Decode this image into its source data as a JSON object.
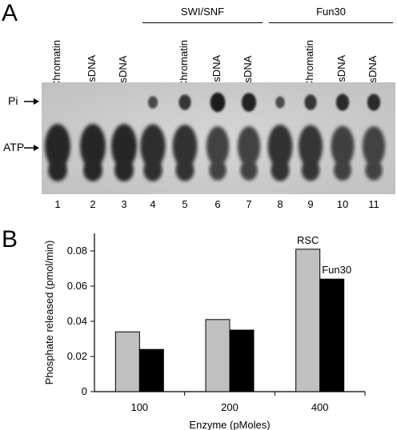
{
  "panel_a": {
    "letter": "A",
    "lane_labels": [
      "Chromatin",
      "dsDNA",
      "ssDNA",
      "Chromatin",
      "dsDNA",
      "ssDNA",
      "Chromatin",
      "dsDNA",
      "ssDNA"
    ],
    "groups": [
      {
        "label": "SWI/SNF"
      },
      {
        "label": "Fun30"
      }
    ],
    "side_labels": {
      "pi": "Pi",
      "atp": "ATP"
    },
    "lane_numbers": [
      "1",
      "2",
      "3",
      "4",
      "5",
      "6",
      "7",
      "8",
      "9",
      "10",
      "11"
    ],
    "pi_intensity": [
      0,
      0,
      0,
      0.35,
      0.6,
      0.9,
      0.85,
      0.3,
      0.6,
      0.7,
      0.7
    ],
    "atp_intensity": [
      1,
      1,
      1,
      0.95,
      0.9,
      0.7,
      0.7,
      0.9,
      0.85,
      0.75,
      0.7
    ]
  },
  "panel_b": {
    "letter": "B",
    "chart_data": {
      "type": "bar",
      "categories": [
        "100",
        "200",
        "400"
      ],
      "series": [
        {
          "name": "RSC",
          "values": [
            0.034,
            0.041,
            0.081
          ],
          "color": "#c0c0c0"
        },
        {
          "name": "Fun30",
          "values": [
            0.024,
            0.035,
            0.064
          ],
          "color": "#000000"
        }
      ],
      "xlabel": "Enzyme (pMoles)",
      "ylabel": "Phosphate released (pmol/min)",
      "ylim": [
        0,
        0.09
      ],
      "yticks": [
        "0",
        "0.02",
        "0.04",
        "0.06",
        "0.08"
      ],
      "ytick_values": [
        0,
        0.02,
        0.04,
        0.06,
        0.08
      ],
      "annotations": [
        "RSC",
        "Fun30"
      ],
      "grid": false
    }
  }
}
